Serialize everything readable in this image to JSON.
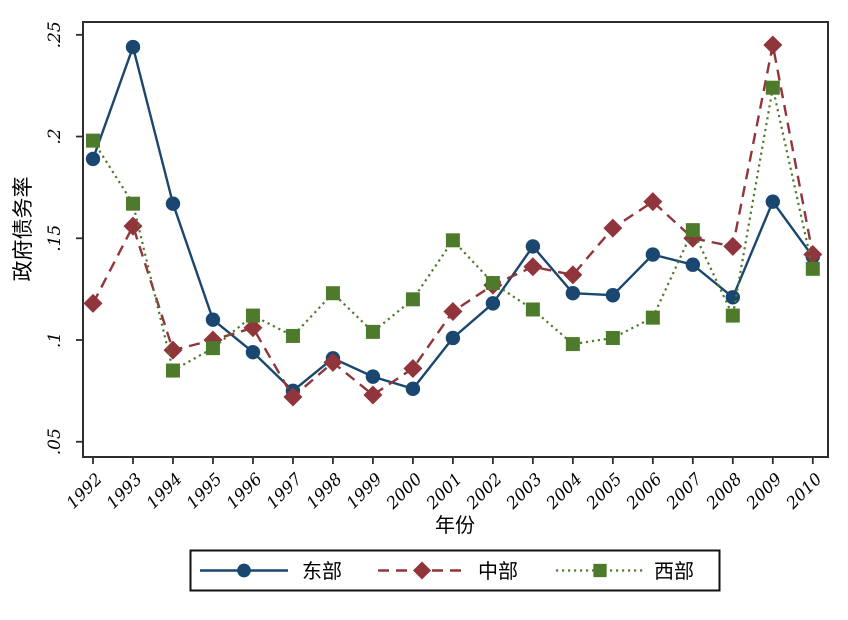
{
  "chart_data": {
    "type": "line",
    "title": "",
    "xlabel": "年份",
    "ylabel": "政府债务率",
    "x": [
      1992,
      1993,
      1994,
      1995,
      1996,
      1997,
      1998,
      1999,
      2000,
      2001,
      2002,
      2003,
      2004,
      2005,
      2006,
      2007,
      2008,
      2009,
      2010
    ],
    "xtick_labels": [
      "1992",
      "1993",
      "1994",
      "1995",
      "1996",
      "1997",
      "1998",
      "1999",
      "2000",
      "2001",
      "2002",
      "2003",
      "2004",
      "2005",
      "2006",
      "2007",
      "2008",
      "2009",
      "2010"
    ],
    "yticks": [
      0.05,
      0.1,
      0.15,
      0.2,
      0.25
    ],
    "ytick_labels": [
      ".05",
      ".1",
      ".15",
      ".2",
      ".25"
    ],
    "xlim": [
      1991.75,
      2010.38
    ],
    "ylim": [
      0.0425,
      0.2563
    ],
    "grid": false,
    "legend_position": "bottom",
    "axis_color": "#2e2e2e",
    "series": [
      {
        "id": "east",
        "name": "东部",
        "color": "#1A476F",
        "marker": "circle",
        "line_style": "solid",
        "values": [
          0.189,
          0.244,
          0.167,
          0.11,
          0.094,
          0.075,
          0.091,
          0.082,
          0.076,
          0.101,
          0.118,
          0.146,
          0.123,
          0.122,
          0.142,
          0.137,
          0.121,
          0.168,
          0.141
        ]
      },
      {
        "id": "central",
        "name": "中部",
        "color": "#90353B",
        "marker": "diamond",
        "line_style": "dashed",
        "values": [
          0.118,
          0.156,
          0.095,
          0.1,
          0.106,
          0.072,
          0.089,
          0.073,
          0.086,
          0.114,
          0.127,
          0.136,
          0.132,
          0.155,
          0.168,
          0.15,
          0.146,
          0.245,
          0.142
        ]
      },
      {
        "id": "west",
        "name": "西部",
        "color": "#4E7A2B",
        "marker": "square",
        "line_style": "dotted",
        "values": [
          0.198,
          0.167,
          0.085,
          0.096,
          0.112,
          0.102,
          0.123,
          0.104,
          0.12,
          0.149,
          0.128,
          0.115,
          0.098,
          0.101,
          0.111,
          0.154,
          0.112,
          0.224,
          0.135
        ]
      }
    ]
  }
}
